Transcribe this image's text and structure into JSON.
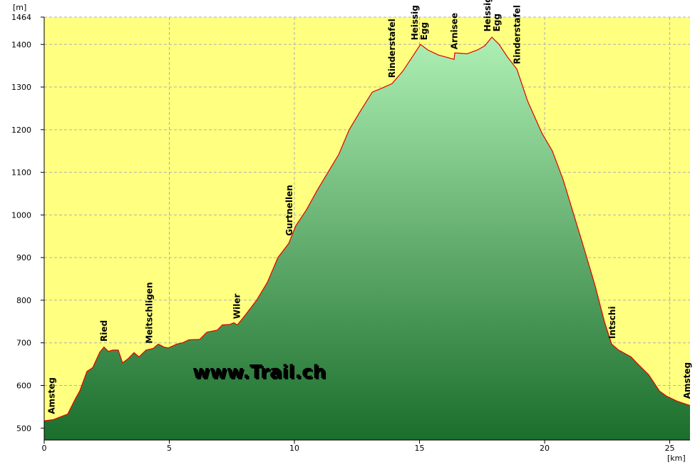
{
  "chart_data": {
    "type": "area",
    "y_unit": "[m]",
    "x_unit": "[km]",
    "watermark": "www.Trail.ch",
    "x": [
      0,
      0.37,
      0.94,
      1.23,
      1.42,
      1.71,
      1.94,
      2.22,
      2.39,
      2.56,
      2.74,
      2.96,
      3.13,
      3.36,
      3.59,
      3.79,
      4.07,
      4.36,
      4.56,
      4.79,
      4.96,
      5.3,
      5.53,
      5.78,
      6.21,
      6.5,
      6.92,
      7.12,
      7.41,
      7.58,
      7.72,
      8.06,
      8.49,
      8.92,
      9.34,
      9.77,
      10.06,
      10.48,
      10.91,
      11.34,
      11.77,
      12.19,
      12.62,
      13.11,
      13.48,
      13.9,
      14.33,
      14.76,
      15.04,
      15.33,
      15.76,
      16.38,
      16.41,
      16.9,
      17.32,
      17.61,
      17.89,
      18.18,
      18.52,
      18.89,
      19.32,
      19.89,
      20.31,
      20.74,
      21.17,
      21.6,
      22.02,
      22.39,
      22.68,
      22.96,
      23.45,
      23.73,
      24.16,
      24.59,
      24.87,
      25.3,
      25.81
    ],
    "values": [
      517,
      520,
      533,
      567,
      587,
      633,
      642,
      678,
      690,
      680,
      683,
      683,
      653,
      663,
      677,
      667,
      683,
      687,
      697,
      690,
      688,
      697,
      700,
      707,
      708,
      725,
      730,
      742,
      743,
      747,
      742,
      767,
      800,
      842,
      900,
      933,
      975,
      1012,
      1058,
      1100,
      1142,
      1200,
      1242,
      1288,
      1297,
      1308,
      1337,
      1375,
      1400,
      1387,
      1375,
      1365,
      1380,
      1378,
      1387,
      1397,
      1417,
      1400,
      1370,
      1342,
      1267,
      1192,
      1150,
      1083,
      1000,
      917,
      833,
      750,
      697,
      683,
      667,
      650,
      625,
      587,
      575,
      563,
      553
    ],
    "color": "#e00000",
    "xlim": [
      0,
      25.81
    ],
    "xticks": [
      0,
      5,
      10,
      15,
      20,
      25
    ],
    "ylim": [
      472,
      1464
    ],
    "yticks": [
      500,
      600,
      700,
      800,
      900,
      1000,
      1100,
      1200,
      1300,
      1400,
      1464
    ],
    "grid": true,
    "annotations": [
      {
        "x": 0.3,
        "lines": [
          "Amsteg"
        ],
        "color": "#000000"
      },
      {
        "x": 2.4,
        "lines": [
          "Ried"
        ],
        "color": "#000000"
      },
      {
        "x": 4.2,
        "lines": [
          "Meitschligen"
        ],
        "color": "#000000"
      },
      {
        "x": 7.7,
        "lines": [
          "Wiler"
        ],
        "color": "#000000"
      },
      {
        "x": 9.8,
        "lines": [
          "Gurtnellen"
        ],
        "color": "#000000"
      },
      {
        "x": 13.9,
        "lines": [
          "Rinderstafel"
        ],
        "color": "#000000"
      },
      {
        "x": 15.0,
        "lines": [
          "Heissig",
          "Egg"
        ],
        "color": "#000000"
      },
      {
        "x": 16.4,
        "lines": [
          "Arnisee"
        ],
        "color": "#0000cc"
      },
      {
        "x": 17.9,
        "lines": [
          "Heissig",
          "Egg"
        ],
        "color": "#000000"
      },
      {
        "x": 18.9,
        "lines": [
          "Rinderstafel"
        ],
        "color": "#000000"
      },
      {
        "x": 22.7,
        "lines": [
          "Intschi"
        ],
        "color": "#000000"
      },
      {
        "x": 25.7,
        "lines": [
          "Amsteg"
        ],
        "color": "#000000"
      }
    ]
  }
}
